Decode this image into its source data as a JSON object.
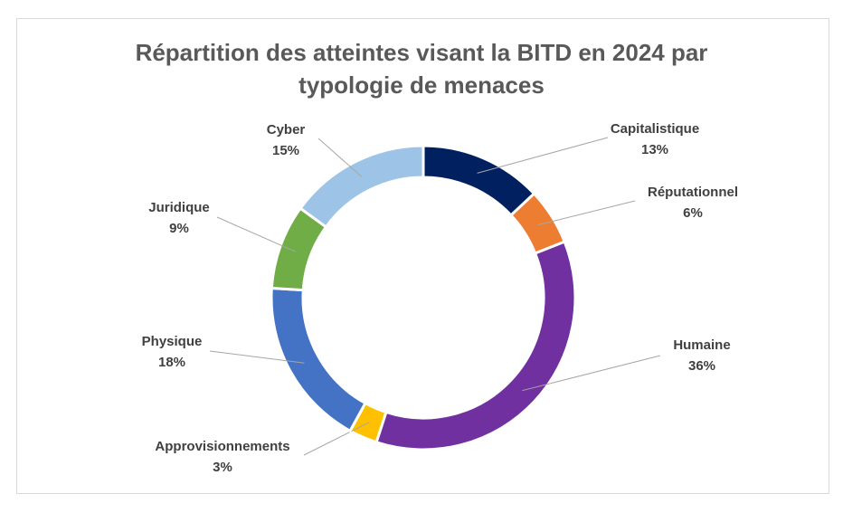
{
  "chart_data": {
    "type": "pie",
    "variant": "donut",
    "title_line1": "Répartition des atteintes visant la BITD en 2024 par",
    "title_line2": "typologie de menaces",
    "slices": [
      {
        "label": "Capitalistique",
        "value": 13,
        "percent_label": "13%",
        "color": "#002060"
      },
      {
        "label": "Réputationnel",
        "value": 6,
        "percent_label": "6%",
        "color": "#ED7D31"
      },
      {
        "label": "Humaine",
        "value": 36,
        "percent_label": "36%",
        "color": "#7030A0"
      },
      {
        "label": "Approvisionnements",
        "value": 3,
        "percent_label": "3%",
        "color": "#FFC000"
      },
      {
        "label": "Physique",
        "value": 18,
        "percent_label": "18%",
        "color": "#4472C4"
      },
      {
        "label": "Juridique",
        "value": 9,
        "percent_label": "9%",
        "color": "#70AD47"
      },
      {
        "label": "Cyber",
        "value": 15,
        "percent_label": "15%",
        "color": "#9DC3E6"
      }
    ],
    "legend": "none"
  }
}
